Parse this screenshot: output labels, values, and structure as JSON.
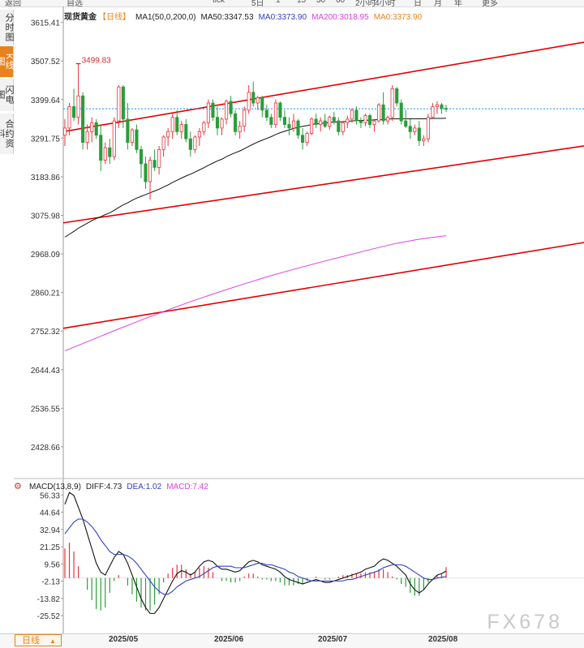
{
  "toolbar": {
    "items": [
      "返回",
      "自选",
      "",
      "",
      "tick",
      "5日",
      "1",
      "15",
      "30",
      "60",
      "2小时",
      "4小时",
      "日",
      "月",
      "年",
      "更多"
    ]
  },
  "side_tabs": [
    {
      "label": "分时图",
      "active": false
    },
    {
      "label": "K线图",
      "active": true
    },
    {
      "label": "闪电图",
      "active": false
    },
    {
      "label": "合约资料",
      "active": false
    }
  ],
  "header": {
    "symbol": "现货黄金",
    "period": "【日线】",
    "ma_params": "MA1(50,0,200,0)",
    "ma50": "MA50:3347.53",
    "ma0a": "MA0:3373.90",
    "ma200": "MA200:3018.95",
    "ma0b": "MA0:3373.90"
  },
  "macd_header": {
    "params": "MACD(13,8,9)",
    "diff": "DIFF:4.73",
    "dea": "DEA:1.02",
    "macd": "MACD:7.42"
  },
  "bottom": {
    "period_tab": "日线",
    "period_arrow": "▲"
  },
  "watermark": "FX678",
  "colors": {
    "up": "#e8333a",
    "down": "#2a9d3a",
    "trend": "#e00000",
    "ma50": "#111111",
    "ma200": "#e040e0",
    "dea": "#3040c0",
    "macd_pos": "#e8333a",
    "macd_neg": "#2a9d3a",
    "price_line": "#1e90ff"
  },
  "chart_data": [
    {
      "type": "candlestick",
      "title": "现货黄金 【日线】",
      "x_ticks": [
        "2025/05",
        "2025/06",
        "2025/07",
        "2025/08"
      ],
      "y_ticks": [
        3615.41,
        3507.52,
        3399.64,
        3291.75,
        3183.86,
        3075.98,
        2968.09,
        2860.21,
        2752.32,
        2644.43,
        2536.55,
        2428.66
      ],
      "ylim": [
        2340,
        3660
      ],
      "annotation": {
        "label": "3499.83",
        "value": 3499.83
      },
      "current_price": 3373.9,
      "candles": [
        [
          3300,
          3345,
          3270,
          3320
        ],
        [
          3320,
          3390,
          3300,
          3380
        ],
        [
          3380,
          3430,
          3340,
          3350
        ],
        [
          3350,
          3499.83,
          3330,
          3410
        ],
        [
          3410,
          3420,
          3260,
          3280
        ],
        [
          3280,
          3330,
          3260,
          3310
        ],
        [
          3310,
          3350,
          3280,
          3335
        ],
        [
          3335,
          3345,
          3290,
          3300
        ],
        [
          3300,
          3330,
          3200,
          3230
        ],
        [
          3230,
          3280,
          3220,
          3265
        ],
        [
          3265,
          3290,
          3220,
          3240
        ],
        [
          3240,
          3350,
          3230,
          3340
        ],
        [
          3340,
          3440,
          3320,
          3435
        ],
        [
          3435,
          3440,
          3320,
          3345
        ],
        [
          3345,
          3390,
          3260,
          3280
        ],
        [
          3280,
          3320,
          3270,
          3315
        ],
        [
          3315,
          3330,
          3250,
          3260
        ],
        [
          3260,
          3270,
          3180,
          3220
        ],
        [
          3220,
          3240,
          3150,
          3170
        ],
        [
          3170,
          3240,
          3120,
          3230
        ],
        [
          3230,
          3260,
          3200,
          3210
        ],
        [
          3210,
          3270,
          3190,
          3260
        ],
        [
          3260,
          3300,
          3240,
          3295
        ],
        [
          3295,
          3320,
          3270,
          3310
        ],
        [
          3310,
          3360,
          3290,
          3350
        ],
        [
          3350,
          3370,
          3300,
          3310
        ],
        [
          3310,
          3340,
          3290,
          3330
        ],
        [
          3330,
          3345,
          3280,
          3290
        ],
        [
          3290,
          3310,
          3240,
          3260
        ],
        [
          3260,
          3300,
          3250,
          3295
        ],
        [
          3295,
          3320,
          3270,
          3310
        ],
        [
          3310,
          3340,
          3300,
          3335
        ],
        [
          3335,
          3400,
          3320,
          3390
        ],
        [
          3390,
          3400,
          3340,
          3350
        ],
        [
          3350,
          3380,
          3300,
          3320
        ],
        [
          3320,
          3350,
          3300,
          3345
        ],
        [
          3345,
          3400,
          3330,
          3395
        ],
        [
          3395,
          3410,
          3350,
          3360
        ],
        [
          3360,
          3370,
          3300,
          3310
        ],
        [
          3310,
          3340,
          3290,
          3325
        ],
        [
          3325,
          3380,
          3310,
          3370
        ],
        [
          3370,
          3440,
          3360,
          3420
        ],
        [
          3420,
          3450,
          3380,
          3390
        ],
        [
          3390,
          3410,
          3370,
          3405
        ],
        [
          3405,
          3410,
          3350,
          3370
        ],
        [
          3370,
          3385,
          3340,
          3350
        ],
        [
          3350,
          3360,
          3320,
          3330
        ],
        [
          3330,
          3400,
          3320,
          3390
        ],
        [
          3390,
          3395,
          3340,
          3350
        ],
        [
          3350,
          3370,
          3320,
          3330
        ],
        [
          3330,
          3350,
          3300,
          3320
        ],
        [
          3320,
          3360,
          3310,
          3340
        ],
        [
          3340,
          3345,
          3290,
          3300
        ],
        [
          3300,
          3320,
          3260,
          3280
        ],
        [
          3280,
          3310,
          3270,
          3305
        ],
        [
          3305,
          3350,
          3300,
          3345
        ],
        [
          3345,
          3360,
          3320,
          3330
        ],
        [
          3330,
          3350,
          3310,
          3340
        ],
        [
          3340,
          3360,
          3320,
          3325
        ],
        [
          3325,
          3355,
          3315,
          3350
        ],
        [
          3350,
          3365,
          3330,
          3340
        ],
        [
          3340,
          3350,
          3300,
          3310
        ],
        [
          3310,
          3340,
          3300,
          3335
        ],
        [
          3335,
          3355,
          3320,
          3345
        ],
        [
          3345,
          3375,
          3335,
          3370
        ],
        [
          3370,
          3380,
          3330,
          3340
        ],
        [
          3340,
          3350,
          3320,
          3335
        ],
        [
          3335,
          3360,
          3325,
          3355
        ],
        [
          3355,
          3360,
          3320,
          3330
        ],
        [
          3330,
          3345,
          3310,
          3340
        ],
        [
          3340,
          3390,
          3335,
          3385
        ],
        [
          3385,
          3420,
          3330,
          3340
        ],
        [
          3340,
          3355,
          3330,
          3350
        ],
        [
          3350,
          3440,
          3340,
          3430
        ],
        [
          3430,
          3435,
          3380,
          3390
        ],
        [
          3390,
          3400,
          3330,
          3340
        ],
        [
          3340,
          3370,
          3320,
          3325
        ],
        [
          3325,
          3345,
          3290,
          3310
        ],
        [
          3310,
          3330,
          3300,
          3320
        ],
        [
          3320,
          3340,
          3270,
          3285
        ],
        [
          3285,
          3300,
          3270,
          3290
        ],
        [
          3290,
          3360,
          3280,
          3350
        ],
        [
          3350,
          3390,
          3345,
          3380
        ],
        [
          3380,
          3395,
          3360,
          3385
        ],
        [
          3385,
          3390,
          3360,
          3375
        ],
        [
          3375,
          3385,
          3365,
          3374
        ]
      ],
      "series": [
        {
          "name": "MA50",
          "values": [
            3015,
            3023,
            3031,
            3040,
            3047,
            3054,
            3061,
            3067,
            3072,
            3078,
            3083,
            3090,
            3098,
            3105,
            3111,
            3118,
            3124,
            3129,
            3134,
            3139,
            3144,
            3149,
            3155,
            3161,
            3168,
            3174,
            3180,
            3186,
            3191,
            3197,
            3203,
            3209,
            3216,
            3222,
            3228,
            3233,
            3240,
            3246,
            3251,
            3256,
            3262,
            3269,
            3275,
            3281,
            3286,
            3291,
            3296,
            3302,
            3307,
            3311,
            3315,
            3319,
            3322,
            3325,
            3327,
            3330,
            3332,
            3333,
            3334,
            3336,
            3337,
            3337,
            3338,
            3339,
            3340,
            3341,
            3341,
            3342,
            3342,
            3343,
            3344,
            3344,
            3345,
            3346,
            3346,
            3346,
            3346,
            3346,
            3346,
            3346,
            3346,
            3346,
            3347,
            3347,
            3347,
            3347.53
          ]
        },
        {
          "name": "MA200",
          "values": [
            2697,
            2726,
            2755,
            2783,
            2810,
            2836,
            2860,
            2883,
            2905,
            2925,
            2944,
            2962,
            2980,
            2997,
            3010,
            3018.95
          ]
        },
        {
          "name": "trendlines",
          "values": [
            [
              3310,
              3560
            ],
            [
              3055,
              3270
            ],
            [
              2760,
              3000
            ]
          ]
        }
      ]
    },
    {
      "type": "bar",
      "title": "MACD(13,8,9)",
      "y_ticks": [
        56.33,
        44.64,
        32.94,
        21.25,
        9.56,
        -2.13,
        -13.82,
        -25.52
      ],
      "ylim": [
        -37,
        62
      ],
      "series": [
        {
          "name": "DIFF",
          "values": [
            50,
            58,
            56,
            48,
            40,
            30,
            20,
            10,
            4,
            2,
            8,
            14,
            18,
            16,
            10,
            2,
            -6,
            -14,
            -20,
            -24,
            -24,
            -20,
            -14,
            -8,
            -2,
            3,
            5,
            4,
            2,
            4,
            8,
            11,
            12,
            11,
            8,
            6,
            6,
            5,
            4,
            5,
            8,
            11,
            12,
            11,
            9,
            8,
            7,
            6,
            4,
            1,
            -1,
            -2,
            -3,
            -4,
            -3,
            -2,
            -1,
            -2,
            -3,
            -3,
            -2,
            -1,
            0,
            1,
            2,
            3,
            4,
            6,
            7,
            8,
            11,
            13,
            12,
            10,
            8,
            5,
            2,
            -4,
            -8,
            -10,
            -8,
            -4,
            -1,
            2,
            3,
            4.73
          ]
        },
        {
          "name": "DEA",
          "values": [
            30,
            34,
            38,
            40,
            40,
            38,
            35,
            31,
            26,
            22,
            18,
            16,
            16,
            16,
            15,
            13,
            10,
            6,
            2,
            -2,
            -6,
            -9,
            -11,
            -11,
            -9,
            -6,
            -4,
            -2,
            -1,
            0,
            1,
            3,
            5,
            7,
            8,
            8,
            8,
            8,
            7,
            7,
            7,
            8,
            9,
            10,
            10,
            9,
            9,
            8,
            7,
            6,
            4,
            3,
            1,
            0,
            -1,
            -2,
            -2,
            -2,
            -2,
            -2,
            -2,
            -2,
            -2,
            -1,
            -1,
            0,
            1,
            2,
            3,
            4,
            5,
            7,
            8,
            9,
            9,
            9,
            8,
            6,
            4,
            2,
            0,
            -1,
            -1,
            0,
            0.5,
            1.02
          ]
        },
        {
          "name": "MACD",
          "values": [
            20,
            24,
            18,
            8,
            0,
            -8,
            -15,
            -21,
            -22,
            -20,
            -10,
            -2,
            2,
            0,
            -5,
            -11,
            -16,
            -20,
            -22,
            -22,
            -18,
            -11,
            -3,
            3,
            7,
            9,
            9,
            6,
            3,
            4,
            7,
            8,
            7,
            4,
            0,
            -2,
            -2,
            -3,
            -3,
            -2,
            1,
            3,
            3,
            1,
            -1,
            -1,
            -2,
            -2,
            -3,
            -5,
            -5,
            -5,
            -4,
            -4,
            -2,
            0,
            1,
            0,
            -1,
            -1,
            0,
            1,
            2,
            2,
            3,
            3,
            3,
            4,
            4,
            4,
            6,
            6,
            4,
            1,
            -1,
            -4,
            -6,
            -10,
            -12,
            -12,
            -8,
            -3,
            0,
            2,
            2.5,
            7.42
          ]
        }
      ]
    }
  ]
}
